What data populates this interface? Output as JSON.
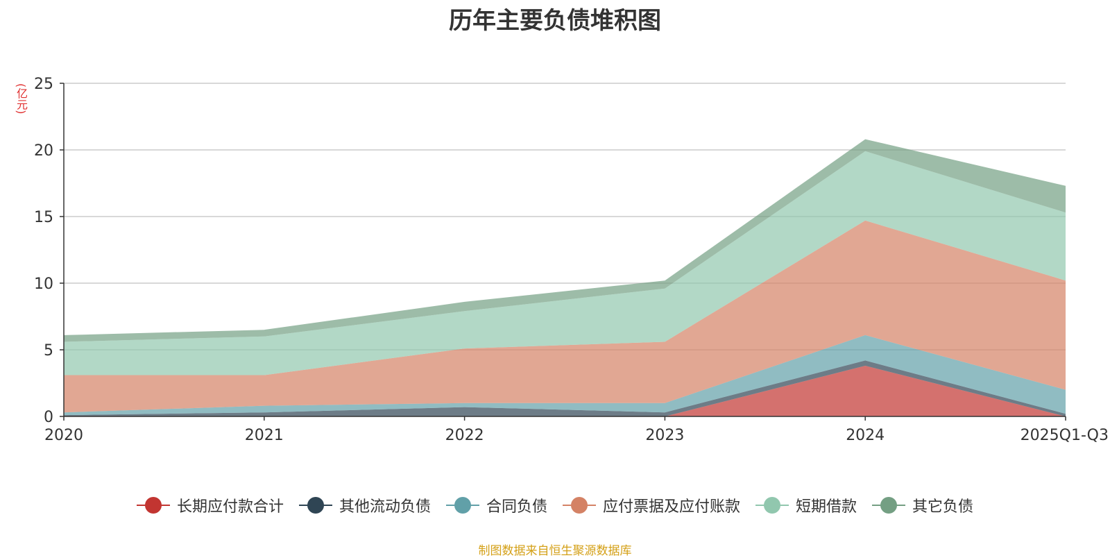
{
  "chart_data": {
    "type": "area",
    "stacked": true,
    "title": "历年主要负债堆积图",
    "ylabel": "(亿元)",
    "categories": [
      "2020",
      "2021",
      "2022",
      "2023",
      "2024",
      "2025Q1-Q3"
    ],
    "ylim": [
      0,
      25
    ],
    "yticks": [
      0,
      5,
      10,
      15,
      20,
      25
    ],
    "grid": true,
    "legend_position": "bottom",
    "series": [
      {
        "name": "长期应付款合计",
        "color": "#c23531",
        "values": [
          0.0,
          0.0,
          0.0,
          0.0,
          3.8,
          0.0
        ]
      },
      {
        "name": "其他流动负债",
        "color": "#2f4554",
        "values": [
          0.1,
          0.3,
          0.7,
          0.3,
          0.4,
          0.2
        ]
      },
      {
        "name": "合同负债",
        "color": "#61a0a8",
        "values": [
          0.2,
          0.5,
          0.3,
          0.7,
          1.9,
          1.8
        ]
      },
      {
        "name": "应付票据及应付账款",
        "color": "#d48265",
        "values": [
          2.8,
          2.3,
          4.1,
          4.6,
          8.6,
          8.2
        ]
      },
      {
        "name": "短期借款",
        "color": "#91c7ae",
        "values": [
          2.5,
          2.9,
          2.8,
          4.0,
          5.2,
          5.1
        ]
      },
      {
        "name": "其它负债",
        "color": "#749f83",
        "values": [
          0.5,
          0.5,
          0.7,
          0.6,
          0.9,
          2.0
        ]
      }
    ]
  },
  "source_note": "制图数据来自恒生聚源数据库"
}
